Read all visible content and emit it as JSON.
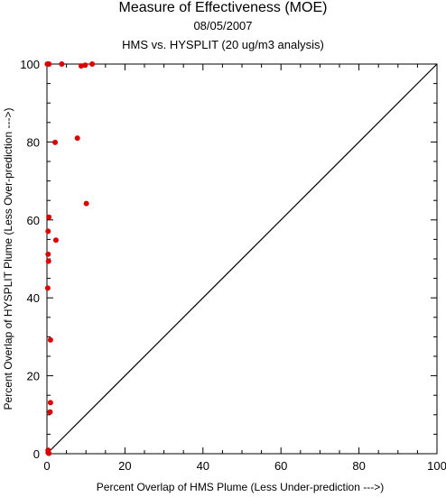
{
  "chart_data": {
    "type": "scatter",
    "title": "Measure of Effectiveness (MOE)",
    "subtitle_date": "08/05/2007",
    "subtitle_analysis": "HMS vs. HYSPLIT  (20 ug/m3 analysis)",
    "xlabel": "Percent Overlap of HMS Plume (Less Under-prediction --->)",
    "ylabel": "Percent Overlap of HYSPLIT Plume (Less Over-prediction --->)",
    "xlim": [
      0,
      100
    ],
    "ylim": [
      0,
      100
    ],
    "xticks": [
      "0",
      "20",
      "40",
      "60",
      "80",
      "100"
    ],
    "yticks": [
      "0",
      "20",
      "40",
      "60",
      "80",
      "100"
    ],
    "grid": false,
    "reference_line": {
      "type": "diagonal",
      "from": [
        0,
        0
      ],
      "to": [
        100,
        100
      ],
      "color": "#000000"
    },
    "point_color": "#dd0000",
    "points": [
      {
        "x": 0.1,
        "y": 100
      },
      {
        "x": 0.3,
        "y": 100
      },
      {
        "x": 0.5,
        "y": 100
      },
      {
        "x": 3.8,
        "y": 100
      },
      {
        "x": 8.8,
        "y": 99.5
      },
      {
        "x": 9.8,
        "y": 99.7
      },
      {
        "x": 11.6,
        "y": 100
      },
      {
        "x": 2.1,
        "y": 79.9
      },
      {
        "x": 7.8,
        "y": 81
      },
      {
        "x": 10.1,
        "y": 64.2
      },
      {
        "x": 0.5,
        "y": 60.7
      },
      {
        "x": 0.3,
        "y": 57.1
      },
      {
        "x": 2.3,
        "y": 54.8
      },
      {
        "x": 0.3,
        "y": 51.2
      },
      {
        "x": 0.4,
        "y": 49.4
      },
      {
        "x": 0.2,
        "y": 42.5
      },
      {
        "x": 0.9,
        "y": 29.2
      },
      {
        "x": 0.9,
        "y": 13.1
      },
      {
        "x": 0.8,
        "y": 10.7
      },
      {
        "x": 0.3,
        "y": 0.9
      },
      {
        "x": 0.3,
        "y": 0.3
      },
      {
        "x": 0.5,
        "y": 0.1
      }
    ]
  }
}
